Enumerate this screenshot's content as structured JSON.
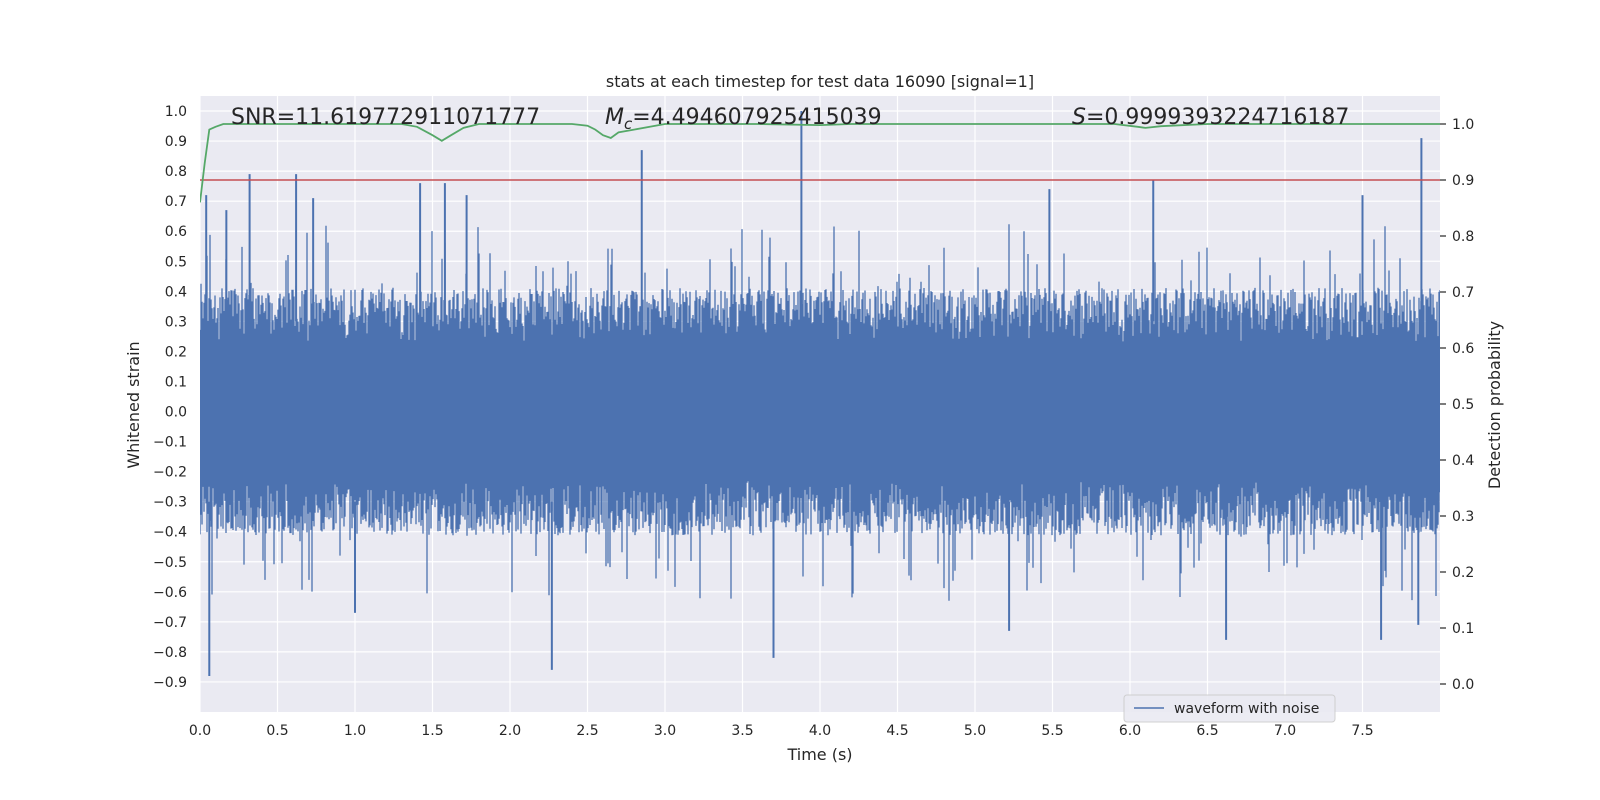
{
  "chart_data": {
    "type": "line",
    "title": "stats at each timestep for test data 16090 [signal=1]",
    "xlabel": "Time (s)",
    "ylabel": "Whitened strain",
    "y2label": "Detection probability",
    "xlim": [
      0.0,
      8.0
    ],
    "ylim": [
      -1.0,
      1.05
    ],
    "y2lim": [
      -0.05,
      1.05
    ],
    "x_ticks": [
      "0.0",
      "0.5",
      "1.0",
      "1.5",
      "2.0",
      "2.5",
      "3.0",
      "3.5",
      "4.0",
      "4.5",
      "5.0",
      "5.5",
      "6.0",
      "6.5",
      "7.0",
      "7.5"
    ],
    "x_tick_values": [
      0.0,
      0.5,
      1.0,
      1.5,
      2.0,
      2.5,
      3.0,
      3.5,
      4.0,
      4.5,
      5.0,
      5.5,
      6.0,
      6.5,
      7.0,
      7.5
    ],
    "y_ticks": [
      "1.0",
      "0.9",
      "0.8",
      "0.7",
      "0.6",
      "0.5",
      "0.4",
      "0.3",
      "0.2",
      "0.1",
      "0.0",
      "−0.1",
      "−0.2",
      "−0.3",
      "−0.4",
      "−0.5",
      "−0.6",
      "−0.7",
      "−0.8",
      "−0.9"
    ],
    "y_tick_values": [
      1.0,
      0.9,
      0.8,
      0.7,
      0.6,
      0.5,
      0.4,
      0.3,
      0.2,
      0.1,
      0.0,
      -0.1,
      -0.2,
      -0.3,
      -0.4,
      -0.5,
      -0.6,
      -0.7,
      -0.8,
      -0.9
    ],
    "y2_ticks": [
      "1.0",
      "0.9",
      "0.8",
      "0.7",
      "0.6",
      "0.5",
      "0.4",
      "0.3",
      "0.2",
      "0.1",
      "0.0"
    ],
    "y2_tick_values": [
      1.0,
      0.9,
      0.8,
      0.7,
      0.6,
      0.5,
      0.4,
      0.3,
      0.2,
      0.1,
      0.0
    ],
    "annotations": {
      "snr": "SNR=11.619772911071777",
      "mc_symbol": "M",
      "mc_subscript": "c",
      "mc_value": "=4.494607925415039",
      "s_symbol": "S",
      "s_value": "=0.9999393224716187"
    },
    "legend": {
      "placement": "lower-right",
      "label": "waveform with noise"
    },
    "threshold": {
      "value": 0.9,
      "axis": "y2",
      "color": "#c44e52"
    },
    "series": [
      {
        "name": "waveform with noise",
        "axis": "y",
        "color": "#4c72b0",
        "sample_rate": 512,
        "duration": 8.0,
        "band_top": 0.42,
        "band_bottom": -0.42,
        "peaks": [
          {
            "x": 0.04,
            "y": 0.72
          },
          {
            "x": 0.17,
            "y": 0.67
          },
          {
            "x": 0.32,
            "y": 0.79
          },
          {
            "x": 0.62,
            "y": 0.79
          },
          {
            "x": 0.73,
            "y": 0.71
          },
          {
            "x": 1.42,
            "y": 0.76
          },
          {
            "x": 1.58,
            "y": 0.76
          },
          {
            "x": 1.72,
            "y": 0.72
          },
          {
            "x": 2.85,
            "y": 0.87
          },
          {
            "x": 3.88,
            "y": 1.0
          },
          {
            "x": 5.48,
            "y": 0.74
          },
          {
            "x": 6.15,
            "y": 0.77
          },
          {
            "x": 7.5,
            "y": 0.72
          },
          {
            "x": 7.88,
            "y": 0.91
          }
        ],
        "troughs": [
          {
            "x": 0.06,
            "y": -0.88
          },
          {
            "x": 1.0,
            "y": -0.67
          },
          {
            "x": 2.27,
            "y": -0.86
          },
          {
            "x": 3.7,
            "y": -0.82
          },
          {
            "x": 5.22,
            "y": -0.73
          },
          {
            "x": 6.62,
            "y": -0.76
          },
          {
            "x": 7.62,
            "y": -0.76
          },
          {
            "x": 7.86,
            "y": -0.71
          }
        ]
      },
      {
        "name": "detection probability",
        "axis": "y2",
        "color": "#55a868",
        "x": [
          0.0,
          0.03,
          0.06,
          0.1,
          0.15,
          0.3,
          0.6,
          1.0,
          1.3,
          1.4,
          1.5,
          1.56,
          1.62,
          1.7,
          1.8,
          2.0,
          2.2,
          2.4,
          2.5,
          2.55,
          2.6,
          2.65,
          2.7,
          2.8,
          3.0,
          3.3,
          3.6,
          4.0,
          4.2,
          4.5,
          5.0,
          5.5,
          5.9,
          6.05,
          6.1,
          6.2,
          6.5,
          7.0,
          7.5,
          8.0
        ],
        "y": [
          0.86,
          0.93,
          0.99,
          0.995,
          1.0,
          1.0,
          1.0,
          1.0,
          1.0,
          0.995,
          0.98,
          0.97,
          0.98,
          0.993,
          1.0,
          1.0,
          1.0,
          1.0,
          0.997,
          0.99,
          0.98,
          0.975,
          0.985,
          0.99,
          1.0,
          1.0,
          1.0,
          0.998,
          1.0,
          1.0,
          1.0,
          1.0,
          1.0,
          0.995,
          0.993,
          0.996,
          1.0,
          1.0,
          1.0,
          1.0
        ]
      }
    ]
  }
}
